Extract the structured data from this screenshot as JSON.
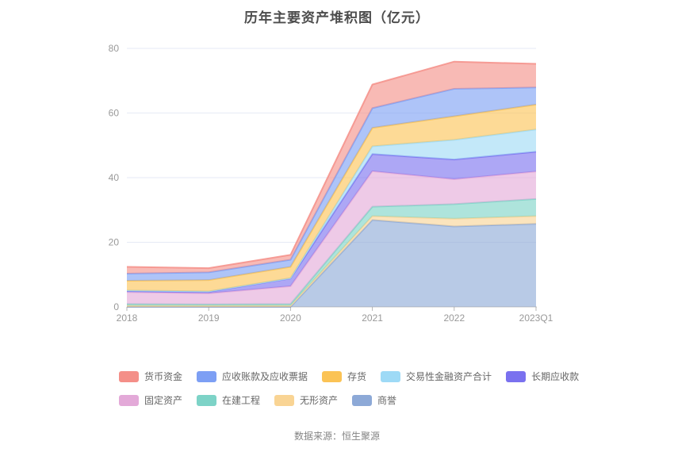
{
  "footer": {
    "source": "数据来源：恒生聚源"
  },
  "chart_data": {
    "type": "area",
    "stacked": true,
    "stack_note": "bands stack bottom-to-top in reverse legend order (商誉 at bottom, 货币资金 on top)",
    "title": "历年主要资产堆积图（亿元）",
    "xlabel": "",
    "ylabel": "",
    "ylim": [
      0,
      80
    ],
    "y_ticks": [
      0,
      20,
      40,
      60,
      80
    ],
    "grid": true,
    "legend_position": "bottom",
    "categories": [
      "2018",
      "2019",
      "2020",
      "2021",
      "2022",
      "2023Q1"
    ],
    "series": [
      {
        "name": "货币资金",
        "color": "#F48F88",
        "values": [
          2.1,
          1.3,
          1.5,
          7.3,
          8.4,
          7.3
        ]
      },
      {
        "name": "应收账款及应收票据",
        "color": "#7D9FF4",
        "values": [
          2.2,
          2.4,
          2.2,
          6.1,
          8.5,
          5.3
        ]
      },
      {
        "name": "存货",
        "color": "#FBC355",
        "values": [
          3.0,
          3.5,
          3.5,
          5.7,
          7.3,
          7.7
        ]
      },
      {
        "name": "交易性金融资产合计",
        "color": "#9EDAF6",
        "values": [
          0.2,
          0.1,
          0.1,
          2.4,
          6.1,
          6.9
        ]
      },
      {
        "name": "长期应收款",
        "color": "#7A71EF",
        "values": [
          0.3,
          0.5,
          2.4,
          5.3,
          6.1,
          6.1
        ]
      },
      {
        "name": "固定资产",
        "color": "#E3A9D8",
        "values": [
          3.7,
          3.4,
          5.5,
          11.0,
          7.7,
          8.5
        ]
      },
      {
        "name": "在建工程",
        "color": "#7DD3C7",
        "values": [
          0.5,
          0.4,
          0.5,
          2.9,
          4.5,
          5.3
        ]
      },
      {
        "name": "无形资产",
        "color": "#F9D494",
        "values": [
          0.4,
          0.4,
          0.4,
          1.2,
          2.4,
          2.4
        ]
      },
      {
        "name": "商誉",
        "color": "#8DA9D7",
        "values": [
          0.0,
          0.0,
          0.0,
          26.9,
          24.9,
          25.7
        ]
      }
    ],
    "style": {
      "grid_color": "#E6EAF5",
      "axis_color": "#999999",
      "tick_label_color": "#999999",
      "area_opacity": 0.62,
      "line_opacity": 0.85
    }
  }
}
